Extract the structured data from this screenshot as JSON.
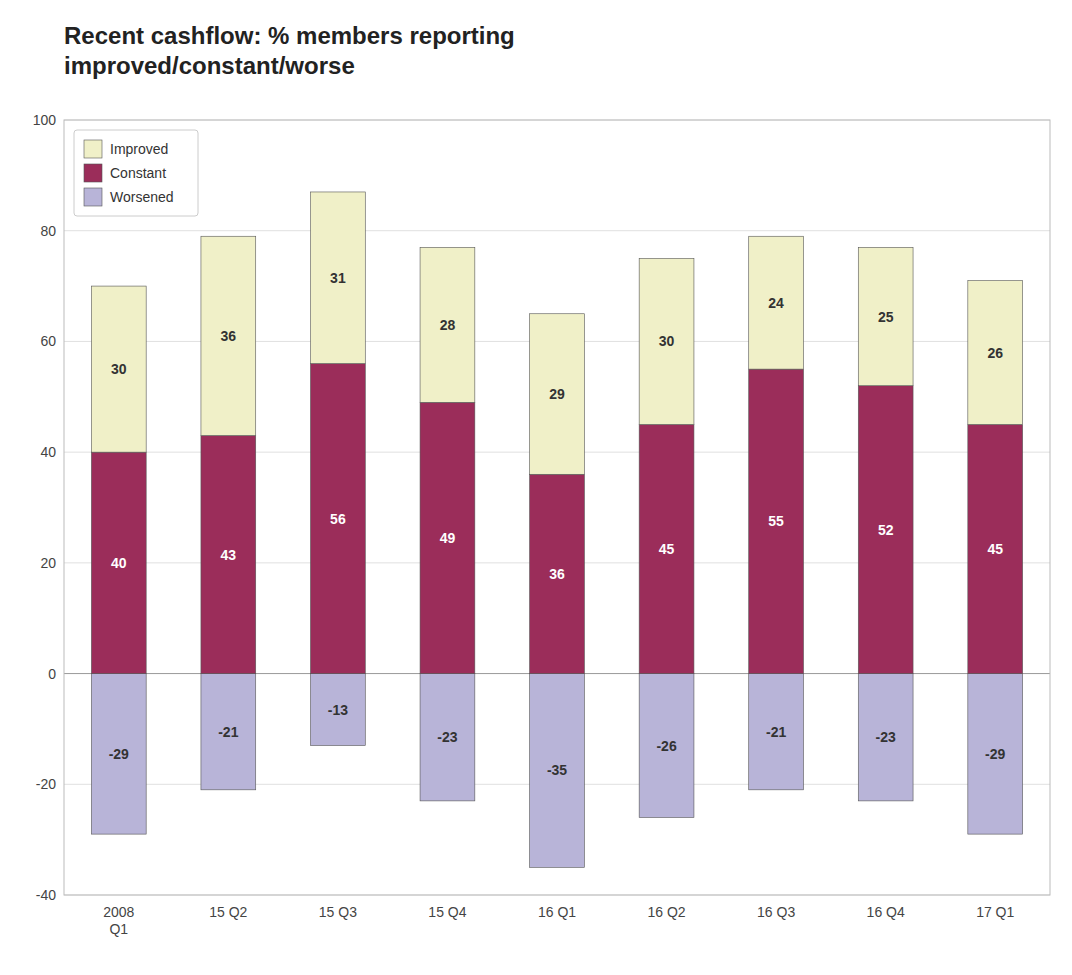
{
  "chart_data": {
    "type": "bar",
    "title": "Recent cashflow: % members reporting\nimproved/constant/worse",
    "categories": [
      "2008\nQ1",
      "15 Q2",
      "15 Q3",
      "15 Q4",
      "16 Q1",
      "16 Q2",
      "16 Q3",
      "16 Q4",
      "17 Q1"
    ],
    "series": [
      {
        "name": "Improved",
        "color": "#f0f0c8",
        "values": [
          30,
          36,
          31,
          28,
          29,
          30,
          24,
          25,
          26
        ]
      },
      {
        "name": "Constant",
        "color": "#9b2d5a",
        "values": [
          40,
          43,
          56,
          49,
          36,
          45,
          55,
          52,
          45
        ]
      },
      {
        "name": "Worsened",
        "color": "#b8b4d8",
        "values": [
          -29,
          -21,
          -13,
          -23,
          -35,
          -26,
          -21,
          -23,
          -29
        ]
      }
    ],
    "stacked": true,
    "data_labels": true,
    "ylim": [
      -40,
      100
    ],
    "yticks": [
      -40,
      -20,
      0,
      20,
      40,
      60,
      80,
      100
    ],
    "grid": true,
    "legend": "upper left"
  }
}
